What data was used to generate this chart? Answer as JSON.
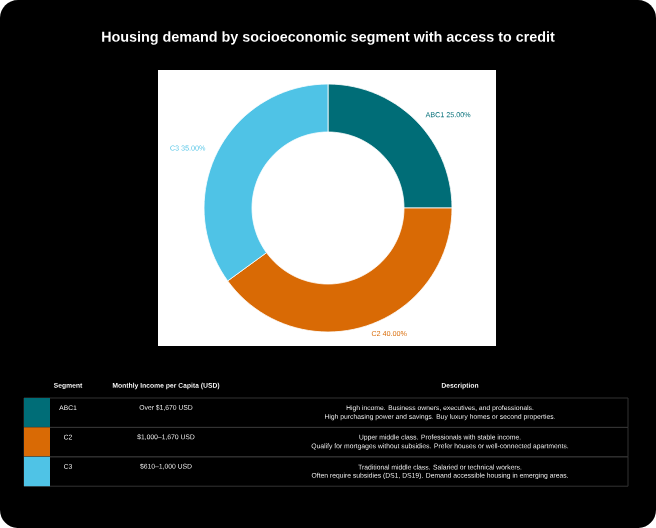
{
  "chart_data": {
    "type": "donut",
    "title": "Housing demand by socioeconomic segment with access to credit",
    "categories": [
      "ABC1",
      "C2",
      "C3"
    ],
    "values": [
      25,
      40,
      35
    ],
    "value_labels": [
      "25.00%",
      "40.00%",
      "35.00%"
    ],
    "colors": [
      "#006d77",
      "#d96a05",
      "#4fc3e6"
    ],
    "annotations": [
      "Segment",
      "Monthly Income per Capita (USD)",
      "Description",
      "ABC1",
      "Over $1,670 USD",
      "High income. Business owners, executives, and professionals.",
      "High purchasing power and savings. Buy luxury homes or second properties.",
      "C2",
      "$1,000–1,670 USD",
      "Upper middle class. Professionals with stable income.",
      "Qualify for mortgages without subsidies. Prefer houses or well-connected apartments.",
      "C3",
      "$610–1,000 USD",
      "Traditional middle class. Salaried or technical workers.",
      "Often require subsidies (DS1, DS19). Demand accessible housing in emerging areas."
    ]
  }
}
